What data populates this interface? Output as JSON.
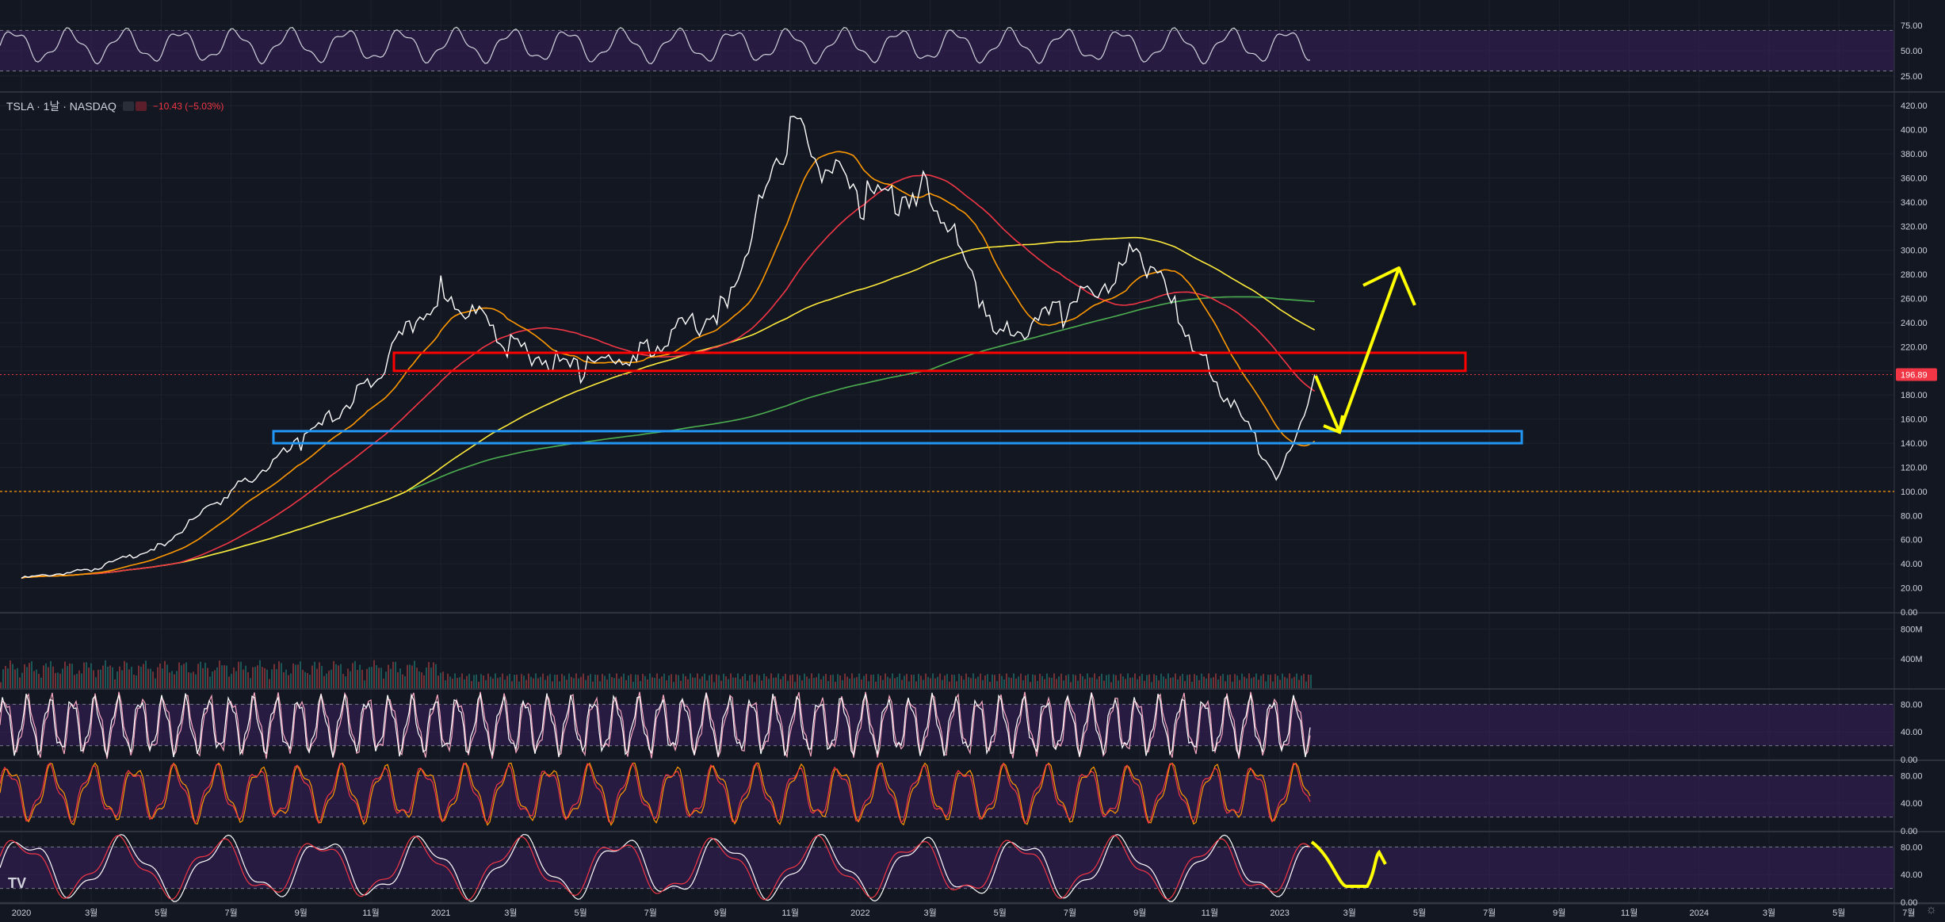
{
  "header": {
    "symbol": "TSLA · 1날 · NASDAQ",
    "change": "−10.43 (−5.03%)"
  },
  "price_label": "196.89",
  "x_ticks": [
    "2020",
    "3월",
    "5월",
    "7월",
    "9월",
    "11월",
    "2021",
    "3월",
    "5월",
    "7월",
    "9월",
    "11월",
    "2022",
    "3월",
    "5월",
    "7월",
    "9월",
    "11월",
    "2023",
    "3월",
    "5월",
    "7월",
    "9월",
    "11월",
    "2024",
    "3월",
    "5월",
    "7월"
  ],
  "panes": {
    "rsi_top": {
      "ticks": [
        "75.00",
        "50.00",
        "25.00"
      ]
    },
    "price": {
      "ticks": [
        "420.00",
        "400.00",
        "380.00",
        "360.00",
        "340.00",
        "320.00",
        "300.00",
        "280.00",
        "260.00",
        "240.00",
        "220.00",
        "200.00",
        "180.00",
        "160.00",
        "140.00",
        "120.00",
        "100.00",
        "80.00",
        "60.00",
        "40.00",
        "20.00",
        "0.00"
      ]
    },
    "volume": {
      "ticks": [
        "800M",
        "400M"
      ]
    },
    "stoch1": {
      "ticks": [
        "80.00",
        "40.00",
        "0.00"
      ]
    },
    "stoch2": {
      "ticks": [
        "80.00",
        "40.00",
        "0.00"
      ]
    },
    "stoch3": {
      "ticks": [
        "80.00",
        "40.00",
        "0.00"
      ]
    }
  },
  "colors": {
    "background": "#131722",
    "price_line": "#ffffff",
    "ma_orange": "#ff9800",
    "ma_red": "#f23645",
    "ma_yellow": "#ffeb3b",
    "ma_green": "#4caf50",
    "resistance_box": "#ff0000",
    "support_box": "#2196f3",
    "arrow": "#ffff00",
    "band_fill": "#3b1f5c"
  },
  "chart_data": {
    "type": "line",
    "title": "",
    "x": [
      "2020-01",
      "2020-03",
      "2020-05",
      "2020-07",
      "2020-09",
      "2020-11",
      "2021-01",
      "2021-03",
      "2021-05",
      "2021-07",
      "2021-09",
      "2021-11",
      "2022-01",
      "2022-03",
      "2022-05",
      "2022-07",
      "2022-09",
      "2022-11",
      "2023-01",
      "2023-02"
    ],
    "series": [
      {
        "values": [
          28,
          35,
          55,
          100,
          140,
          190,
          270,
          220,
          200,
          220,
          250,
          400,
          340,
          350,
          230,
          250,
          300,
          200,
          110,
          197
        ]
      }
    ],
    "ylim": [
      0,
      430
    ],
    "annotations": {
      "resistance_zone": [
        200,
        215
      ],
      "support_zone": [
        140,
        150
      ],
      "last_price": 196.89,
      "dotted_level": 100
    },
    "legend": "none",
    "grid": true
  }
}
